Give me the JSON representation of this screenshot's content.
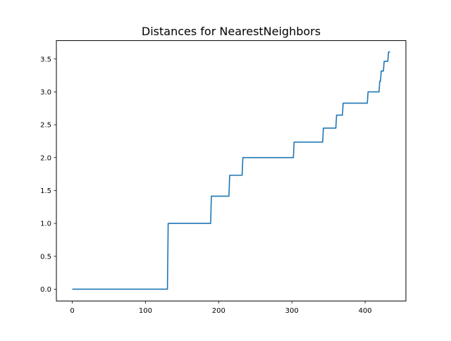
{
  "chart_data": {
    "type": "line",
    "title": "Distances for NearestNeighbors",
    "xlabel": "",
    "ylabel": "",
    "xlim": [
      -21.7,
      455.7
    ],
    "ylim": [
      -0.18,
      3.78
    ],
    "xticks": [
      0,
      100,
      200,
      300,
      400
    ],
    "yticks": [
      0.0,
      0.5,
      1.0,
      1.5,
      2.0,
      2.5,
      3.0,
      3.5
    ],
    "xtick_labels": [
      "0",
      "100",
      "200",
      "300",
      "400"
    ],
    "ytick_labels": [
      "0.0",
      "0.5",
      "1.0",
      "1.5",
      "2.0",
      "2.5",
      "3.0",
      "3.5"
    ],
    "grid": false,
    "legend": "none",
    "series": [
      {
        "color": "#1f77b4",
        "x": [
          0,
          130,
          131,
          189,
          190,
          214,
          215,
          232,
          233,
          302,
          303,
          342,
          343,
          360,
          361,
          369,
          370,
          403,
          404,
          419,
          420,
          421,
          422,
          425,
          426,
          431,
          432,
          434
        ],
        "y": [
          0,
          0,
          1.0,
          1.0,
          1.414,
          1.414,
          1.732,
          1.732,
          2.0,
          2.0,
          2.236,
          2.236,
          2.449,
          2.449,
          2.646,
          2.646,
          2.828,
          2.828,
          3.0,
          3.0,
          3.162,
          3.162,
          3.317,
          3.317,
          3.464,
          3.464,
          3.606,
          3.606
        ]
      }
    ]
  }
}
